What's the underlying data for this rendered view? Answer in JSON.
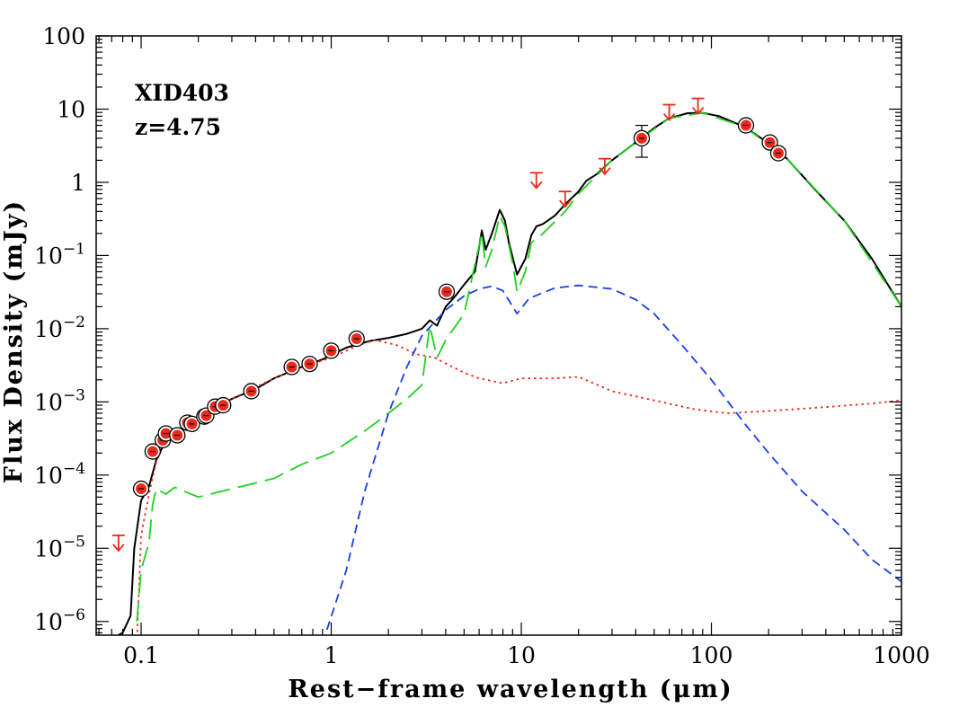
{
  "chart_data": {
    "type": "line",
    "title": "",
    "xlabel": "Rest−frame wavelength (μm)",
    "ylabel": "Flux Density (mJy)",
    "xscale": "log",
    "yscale": "log",
    "xlim": [
      0.058,
      1000
    ],
    "ylim": [
      6.5e-07,
      100
    ],
    "grid": false,
    "x_ticks": [
      {
        "value": 0.1,
        "label": "0.1"
      },
      {
        "value": 1,
        "label": "1"
      },
      {
        "value": 10,
        "label": "10"
      },
      {
        "value": 100,
        "label": "100"
      },
      {
        "value": 1000,
        "label": "1000"
      }
    ],
    "y_ticks": [
      {
        "value": 100,
        "base": "100",
        "exp": ""
      },
      {
        "value": 10,
        "base": "10",
        "exp": ""
      },
      {
        "value": 1,
        "base": "1",
        "exp": ""
      },
      {
        "value": 0.1,
        "base": "10",
        "exp": "−1"
      },
      {
        "value": 0.01,
        "base": "10",
        "exp": "−2"
      },
      {
        "value": 0.001,
        "base": "10",
        "exp": "−3"
      },
      {
        "value": 0.0001,
        "base": "10",
        "exp": "−4"
      },
      {
        "value": 1e-05,
        "base": "10",
        "exp": "−5"
      },
      {
        "value": 1e-06,
        "base": "10",
        "exp": "−6"
      }
    ],
    "annotations": {
      "source": "XID403",
      "redshift": "z=4.75"
    },
    "series": [
      {
        "style": "solid",
        "color": "#000000",
        "points": [
          [
            0.058,
            4.5e-07
          ],
          [
            0.08,
            7e-07
          ],
          [
            0.088,
            1.2e-06
          ],
          [
            0.092,
            1e-05
          ],
          [
            0.1,
            4.5e-05
          ],
          [
            0.11,
            7e-05
          ],
          [
            0.12,
            0.00016
          ],
          [
            0.135,
            0.0003
          ],
          [
            0.15,
            0.00035
          ],
          [
            0.18,
            0.0005
          ],
          [
            0.2,
            0.00058
          ],
          [
            0.25,
            0.00085
          ],
          [
            0.3,
            0.0011
          ],
          [
            0.4,
            0.0015
          ],
          [
            0.5,
            0.0021
          ],
          [
            0.7,
            0.003
          ],
          [
            0.9,
            0.0038
          ],
          [
            1.2,
            0.0055
          ],
          [
            1.6,
            0.0068
          ],
          [
            2,
            0.0075
          ],
          [
            2.5,
            0.0085
          ],
          [
            3,
            0.01
          ],
          [
            3.3,
            0.013
          ],
          [
            3.6,
            0.011
          ],
          [
            4,
            0.02
          ],
          [
            4.5,
            0.028
          ],
          [
            5,
            0.04
          ],
          [
            5.7,
            0.06
          ],
          [
            6.2,
            0.22
          ],
          [
            6.5,
            0.12
          ],
          [
            7,
            0.2
          ],
          [
            7.7,
            0.42
          ],
          [
            8.2,
            0.3
          ],
          [
            8.6,
            0.15
          ],
          [
            9.5,
            0.055
          ],
          [
            10.5,
            0.09
          ],
          [
            11.3,
            0.19
          ],
          [
            12,
            0.25
          ],
          [
            13,
            0.27
          ],
          [
            15,
            0.35
          ],
          [
            17,
            0.5
          ],
          [
            20,
            0.75
          ],
          [
            22,
            1.05
          ],
          [
            25,
            1.3
          ],
          [
            30,
            2
          ],
          [
            40,
            3.5
          ],
          [
            50,
            5.5
          ],
          [
            60,
            7.5
          ],
          [
            75,
            8.8
          ],
          [
            90,
            8.9
          ],
          [
            110,
            8
          ],
          [
            150,
            5.7
          ],
          [
            200,
            3.4
          ],
          [
            250,
            2.1
          ],
          [
            350,
            0.8
          ],
          [
            500,
            0.3
          ],
          [
            700,
            0.09
          ],
          [
            1000,
            0.02
          ]
        ]
      },
      {
        "style": "dotted",
        "color": "#e82a1a",
        "points": [
          [
            0.095,
            5e-07
          ],
          [
            0.1,
            1.5e-05
          ],
          [
            0.11,
            5.5e-05
          ],
          [
            0.12,
            0.00015
          ],
          [
            0.135,
            0.0003
          ],
          [
            0.15,
            0.00035
          ],
          [
            0.2,
            0.00058
          ],
          [
            0.3,
            0.0011
          ],
          [
            0.5,
            0.0021
          ],
          [
            0.7,
            0.003
          ],
          [
            1,
            0.004
          ],
          [
            1.4,
            0.006
          ],
          [
            1.7,
            0.007
          ],
          [
            2.2,
            0.006
          ],
          [
            2.8,
            0.0045
          ],
          [
            3.5,
            0.004
          ],
          [
            5,
            0.0025
          ],
          [
            6,
            0.0021
          ],
          [
            8,
            0.0018
          ],
          [
            10,
            0.0021
          ],
          [
            12,
            0.0021
          ],
          [
            15,
            0.0021
          ],
          [
            20,
            0.0022
          ],
          [
            30,
            0.0014
          ],
          [
            50,
            0.00105
          ],
          [
            80,
            0.0008
          ],
          [
            120,
            0.0007
          ],
          [
            200,
            0.00075
          ],
          [
            400,
            0.00085
          ],
          [
            700,
            0.00095
          ],
          [
            1000,
            0.00105
          ]
        ]
      },
      {
        "style": "longdash",
        "color": "#22d022",
        "points": [
          [
            0.095,
            1e-06
          ],
          [
            0.1,
            5e-06
          ],
          [
            0.11,
            1.2e-05
          ],
          [
            0.115,
            4e-05
          ],
          [
            0.12,
            6.5e-05
          ],
          [
            0.135,
            5.5e-05
          ],
          [
            0.15,
            6.8e-05
          ],
          [
            0.2,
            5e-05
          ],
          [
            0.3,
            6.5e-05
          ],
          [
            0.5,
            9e-05
          ],
          [
            0.7,
            0.00014
          ],
          [
            1,
            0.0002
          ],
          [
            1.5,
            0.0004
          ],
          [
            2,
            0.0007
          ],
          [
            2.5,
            0.0011
          ],
          [
            3,
            0.0017
          ],
          [
            3.3,
            0.011
          ],
          [
            3.6,
            0.004
          ],
          [
            4,
            0.007
          ],
          [
            5,
            0.016
          ],
          [
            6.2,
            0.2
          ],
          [
            6.5,
            0.07
          ],
          [
            7,
            0.12
          ],
          [
            7.7,
            0.35
          ],
          [
            8.2,
            0.25
          ],
          [
            9,
            0.08
          ],
          [
            9.5,
            0.032
          ],
          [
            10.5,
            0.06
          ],
          [
            11.3,
            0.15
          ],
          [
            13,
            0.2
          ],
          [
            17,
            0.4
          ],
          [
            20,
            0.7
          ],
          [
            25,
            1.25
          ],
          [
            30,
            2
          ],
          [
            40,
            3.5
          ],
          [
            60,
            7.5
          ],
          [
            90,
            8.9
          ],
          [
            150,
            5.7
          ],
          [
            250,
            2.1
          ],
          [
            500,
            0.3
          ],
          [
            1000,
            0.02
          ]
        ]
      },
      {
        "style": "dashed",
        "color": "#1a3ee8",
        "points": [
          [
            0.9,
            5e-07
          ],
          [
            1.2,
            5e-06
          ],
          [
            1.5,
            6e-05
          ],
          [
            2,
            0.0007
          ],
          [
            2.5,
            0.003
          ],
          [
            3,
            0.008
          ],
          [
            4,
            0.018
          ],
          [
            5,
            0.028
          ],
          [
            6,
            0.035
          ],
          [
            7,
            0.038
          ],
          [
            8,
            0.033
          ],
          [
            9.5,
            0.016
          ],
          [
            11,
            0.026
          ],
          [
            15,
            0.036
          ],
          [
            20,
            0.039
          ],
          [
            30,
            0.035
          ],
          [
            40,
            0.025
          ],
          [
            50,
            0.016
          ],
          [
            70,
            0.006
          ],
          [
            100,
            0.002
          ],
          [
            150,
            0.0005
          ],
          [
            200,
            0.0002
          ],
          [
            300,
            6e-05
          ],
          [
            500,
            1.8e-05
          ],
          [
            700,
            7e-06
          ],
          [
            1000,
            3.5e-06
          ]
        ]
      }
    ],
    "detections": [
      {
        "x": 0.1,
        "y": 6.5e-05
      },
      {
        "x": 0.115,
        "y": 0.00021
      },
      {
        "x": 0.13,
        "y": 0.0003
      },
      {
        "x": 0.135,
        "y": 0.00037
      },
      {
        "x": 0.155,
        "y": 0.00035
      },
      {
        "x": 0.175,
        "y": 0.00052
      },
      {
        "x": 0.185,
        "y": 0.0005
      },
      {
        "x": 0.215,
        "y": 0.00063
      },
      {
        "x": 0.22,
        "y": 0.00065
      },
      {
        "x": 0.245,
        "y": 0.00086
      },
      {
        "x": 0.27,
        "y": 0.0009
      },
      {
        "x": 0.38,
        "y": 0.0014
      },
      {
        "x": 0.62,
        "y": 0.003
      },
      {
        "x": 0.77,
        "y": 0.0033
      },
      {
        "x": 1,
        "y": 0.005
      },
      {
        "x": 1.36,
        "y": 0.0073
      },
      {
        "x": 4.05,
        "y": 0.032
      },
      {
        "x": 43,
        "y": 4,
        "err_low": 2.2,
        "err_high": 6
      },
      {
        "x": 152,
        "y": 6
      },
      {
        "x": 203,
        "y": 3.5
      },
      {
        "x": 225,
        "y": 2.5
      }
    ],
    "upper_limits": [
      {
        "x": 0.076,
        "y": 1.5e-05
      },
      {
        "x": 12,
        "y": 1.35
      },
      {
        "x": 17,
        "y": 0.75
      },
      {
        "x": 27.5,
        "y": 2.1
      },
      {
        "x": 60,
        "y": 11.5
      },
      {
        "x": 85,
        "y": 14
      }
    ]
  }
}
